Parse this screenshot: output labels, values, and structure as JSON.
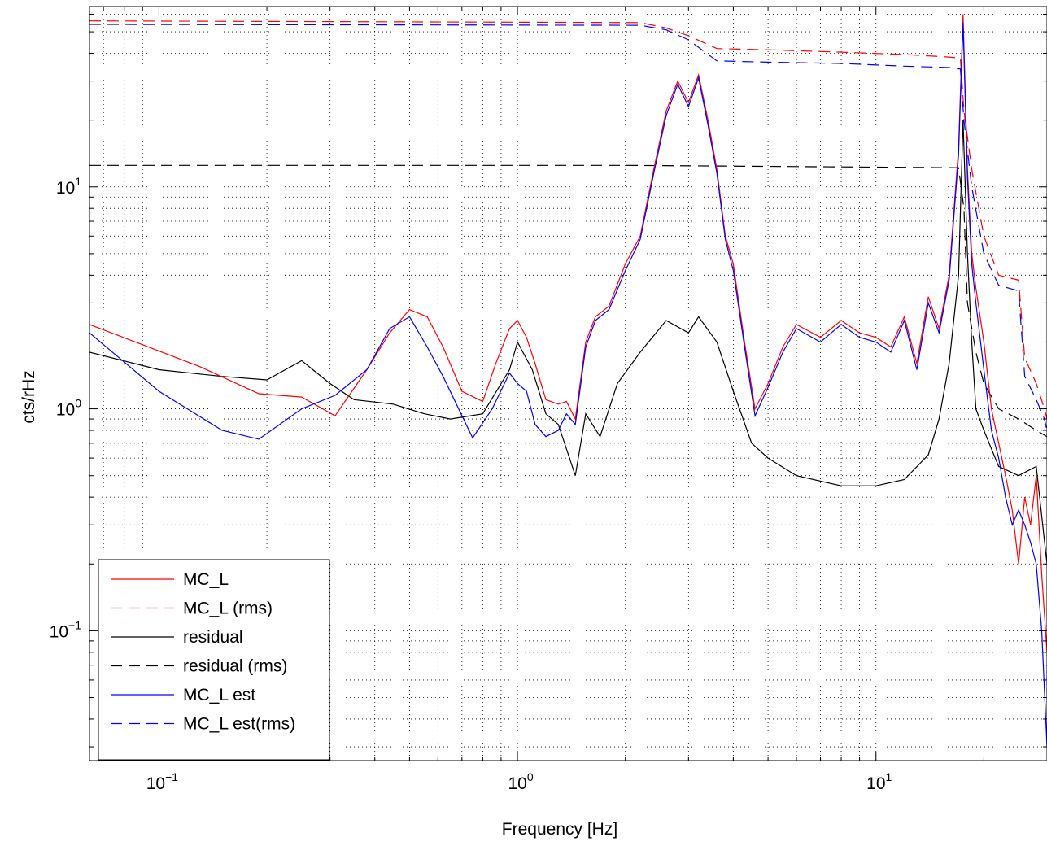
{
  "chart_data": {
    "type": "line",
    "title": "",
    "xlabel": "Frequency [Hz]",
    "ylabel": "cts/rHz",
    "xscale": "log",
    "yscale": "log",
    "xlim": [
      0.064,
      30
    ],
    "ylim": [
      0.026,
      65
    ],
    "grid": true,
    "legend_position": "bottom-left",
    "x_ticks": [
      {
        "value": 0.1,
        "base": "10",
        "exp": "−1"
      },
      {
        "value": 1,
        "base": "10",
        "exp": "0"
      },
      {
        "value": 10,
        "base": "10",
        "exp": "1"
      }
    ],
    "y_ticks": [
      {
        "value": 0.1,
        "base": "10",
        "exp": "−1"
      },
      {
        "value": 1,
        "base": "10",
        "exp": "0"
      },
      {
        "value": 10,
        "base": "10",
        "exp": "1"
      }
    ],
    "series": [
      {
        "name": "MC_L",
        "color": "#ff0000",
        "dash": "solid",
        "points": [
          [
            0.064,
            2.4
          ],
          [
            0.13,
            1.55
          ],
          [
            0.19,
            1.17
          ],
          [
            0.25,
            1.13
          ],
          [
            0.31,
            0.93
          ],
          [
            0.38,
            1.5
          ],
          [
            0.44,
            2.2
          ],
          [
            0.5,
            2.8
          ],
          [
            0.56,
            2.6
          ],
          [
            0.62,
            1.9
          ],
          [
            0.7,
            1.2
          ],
          [
            0.8,
            1.08
          ],
          [
            0.87,
            1.6
          ],
          [
            0.95,
            2.3
          ],
          [
            1.0,
            2.5
          ],
          [
            1.06,
            2.1
          ],
          [
            1.12,
            1.6
          ],
          [
            1.2,
            1.1
          ],
          [
            1.3,
            1.05
          ],
          [
            1.37,
            1.08
          ],
          [
            1.45,
            0.9
          ],
          [
            1.55,
            2.0
          ],
          [
            1.65,
            2.6
          ],
          [
            1.8,
            2.9
          ],
          [
            2.0,
            4.5
          ],
          [
            2.2,
            6.0
          ],
          [
            2.4,
            12.0
          ],
          [
            2.6,
            22.0
          ],
          [
            2.8,
            30.0
          ],
          [
            3.0,
            24.0
          ],
          [
            3.2,
            32.0
          ],
          [
            3.4,
            20.0
          ],
          [
            3.6,
            12.0
          ],
          [
            3.8,
            6.0
          ],
          [
            4.0,
            4.5
          ],
          [
            4.3,
            2.0
          ],
          [
            4.6,
            1.0
          ],
          [
            5.0,
            1.3
          ],
          [
            5.5,
            1.9
          ],
          [
            6.0,
            2.4
          ],
          [
            7.0,
            2.1
          ],
          [
            8.0,
            2.5
          ],
          [
            9.0,
            2.2
          ],
          [
            10.0,
            2.1
          ],
          [
            11.0,
            1.9
          ],
          [
            12.0,
            2.6
          ],
          [
            13.0,
            1.6
          ],
          [
            14.0,
            3.2
          ],
          [
            15.0,
            2.3
          ],
          [
            16.0,
            4.0
          ],
          [
            17.0,
            15.0
          ],
          [
            17.5,
            60.0
          ],
          [
            18.0,
            12.0
          ],
          [
            18.5,
            5.0
          ],
          [
            19.0,
            3.5
          ],
          [
            20.0,
            2.0
          ],
          [
            21.0,
            1.0
          ],
          [
            22.0,
            0.7
          ],
          [
            23.0,
            0.5
          ],
          [
            24.0,
            0.35
          ],
          [
            25.0,
            0.2
          ],
          [
            26.0,
            0.4
          ],
          [
            27.0,
            0.3
          ],
          [
            28.0,
            0.5
          ],
          [
            29.0,
            0.18
          ],
          [
            30.0,
            0.08
          ]
        ]
      },
      {
        "name": "MC_L (rms)",
        "color": "#ff0000",
        "dash": "dashed",
        "points": [
          [
            0.064,
            56.0
          ],
          [
            2.2,
            55.0
          ],
          [
            2.6,
            52.0
          ],
          [
            3.0,
            48.0
          ],
          [
            3.6,
            42.0
          ],
          [
            5.0,
            41.5
          ],
          [
            8.0,
            40.5
          ],
          [
            12.0,
            39.5
          ],
          [
            16.0,
            38.5
          ],
          [
            17.2,
            38.0
          ],
          [
            17.6,
            22.0
          ],
          [
            18.5,
            12.0
          ],
          [
            20.0,
            6.0
          ],
          [
            22.0,
            4.0
          ],
          [
            25.0,
            3.8
          ],
          [
            26.0,
            1.7
          ],
          [
            28.0,
            1.3
          ],
          [
            29.5,
            1.0
          ],
          [
            30.0,
            0.9
          ]
        ]
      },
      {
        "name": "residual",
        "color": "#000000",
        "dash": "solid",
        "points": [
          [
            0.064,
            1.8
          ],
          [
            0.1,
            1.5
          ],
          [
            0.15,
            1.4
          ],
          [
            0.2,
            1.35
          ],
          [
            0.25,
            1.65
          ],
          [
            0.3,
            1.3
          ],
          [
            0.35,
            1.1
          ],
          [
            0.45,
            1.05
          ],
          [
            0.55,
            0.95
          ],
          [
            0.65,
            0.9
          ],
          [
            0.8,
            0.95
          ],
          [
            0.95,
            1.5
          ],
          [
            1.0,
            2.0
          ],
          [
            1.1,
            1.5
          ],
          [
            1.2,
            0.95
          ],
          [
            1.3,
            0.85
          ],
          [
            1.45,
            0.5
          ],
          [
            1.55,
            0.95
          ],
          [
            1.7,
            0.75
          ],
          [
            1.9,
            1.3
          ],
          [
            2.2,
            1.8
          ],
          [
            2.6,
            2.5
          ],
          [
            3.0,
            2.2
          ],
          [
            3.2,
            2.6
          ],
          [
            3.6,
            2.0
          ],
          [
            4.0,
            1.2
          ],
          [
            4.5,
            0.7
          ],
          [
            5.0,
            0.6
          ],
          [
            6.0,
            0.5
          ],
          [
            8.0,
            0.45
          ],
          [
            10.0,
            0.45
          ],
          [
            12.0,
            0.48
          ],
          [
            14.0,
            0.62
          ],
          [
            15.0,
            0.9
          ],
          [
            16.0,
            1.6
          ],
          [
            17.0,
            4.0
          ],
          [
            17.5,
            20.0
          ],
          [
            18.0,
            5.0
          ],
          [
            18.5,
            2.0
          ],
          [
            19.0,
            1.0
          ],
          [
            20.0,
            0.8
          ],
          [
            22.0,
            0.55
          ],
          [
            25.0,
            0.5
          ],
          [
            28.0,
            0.55
          ],
          [
            30.0,
            0.2
          ]
        ]
      },
      {
        "name": "residual (rms)",
        "color": "#000000",
        "dash": "dashed",
        "points": [
          [
            0.064,
            12.5
          ],
          [
            2.0,
            12.5
          ],
          [
            17.0,
            12.2
          ],
          [
            17.6,
            8.0
          ],
          [
            18.0,
            3.0
          ],
          [
            19.0,
            1.8
          ],
          [
            20.0,
            1.3
          ],
          [
            22.0,
            1.0
          ],
          [
            25.0,
            0.9
          ],
          [
            28.0,
            0.8
          ],
          [
            30.0,
            0.75
          ]
        ]
      },
      {
        "name": "MC_L est",
        "color": "#0000ff",
        "dash": "solid",
        "points": [
          [
            0.064,
            2.2
          ],
          [
            0.1,
            1.2
          ],
          [
            0.15,
            0.8
          ],
          [
            0.19,
            0.73
          ],
          [
            0.25,
            1.0
          ],
          [
            0.31,
            1.15
          ],
          [
            0.38,
            1.5
          ],
          [
            0.44,
            2.3
          ],
          [
            0.5,
            2.6
          ],
          [
            0.56,
            1.9
          ],
          [
            0.62,
            1.4
          ],
          [
            0.75,
            0.74
          ],
          [
            0.85,
            1.0
          ],
          [
            0.95,
            1.45
          ],
          [
            1.0,
            1.3
          ],
          [
            1.06,
            1.2
          ],
          [
            1.12,
            0.85
          ],
          [
            1.2,
            0.75
          ],
          [
            1.3,
            0.8
          ],
          [
            1.37,
            0.95
          ],
          [
            1.45,
            0.85
          ],
          [
            1.55,
            1.9
          ],
          [
            1.65,
            2.5
          ],
          [
            1.8,
            2.8
          ],
          [
            2.0,
            4.2
          ],
          [
            2.2,
            5.8
          ],
          [
            2.4,
            11.5
          ],
          [
            2.6,
            21.0
          ],
          [
            2.8,
            29.0
          ],
          [
            3.0,
            23.0
          ],
          [
            3.2,
            31.0
          ],
          [
            3.4,
            19.0
          ],
          [
            3.6,
            11.5
          ],
          [
            3.8,
            5.8
          ],
          [
            4.0,
            4.2
          ],
          [
            4.3,
            1.9
          ],
          [
            4.6,
            0.93
          ],
          [
            5.0,
            1.25
          ],
          [
            5.5,
            1.8
          ],
          [
            6.0,
            2.3
          ],
          [
            7.0,
            2.0
          ],
          [
            8.0,
            2.4
          ],
          [
            9.0,
            2.1
          ],
          [
            10.0,
            2.0
          ],
          [
            11.0,
            1.8
          ],
          [
            12.0,
            2.5
          ],
          [
            13.0,
            1.5
          ],
          [
            14.0,
            3.0
          ],
          [
            15.0,
            2.2
          ],
          [
            16.0,
            3.8
          ],
          [
            17.0,
            14.0
          ],
          [
            17.5,
            55.0
          ],
          [
            18.0,
            11.0
          ],
          [
            18.5,
            4.5
          ],
          [
            19.0,
            3.0
          ],
          [
            20.0,
            1.5
          ],
          [
            21.0,
            0.8
          ],
          [
            22.0,
            0.6
          ],
          [
            23.0,
            0.4
          ],
          [
            24.0,
            0.3
          ],
          [
            25.0,
            0.35
          ],
          [
            26.0,
            0.3
          ],
          [
            27.0,
            0.25
          ],
          [
            28.0,
            0.2
          ],
          [
            29.0,
            0.1
          ],
          [
            30.0,
            0.03
          ]
        ]
      },
      {
        "name": "MC_L est(rms)",
        "color": "#0000ff",
        "dash": "dashed",
        "points": [
          [
            0.064,
            54.0
          ],
          [
            2.2,
            53.5
          ],
          [
            2.6,
            51.0
          ],
          [
            3.0,
            46.0
          ],
          [
            3.6,
            37.0
          ],
          [
            5.0,
            36.5
          ],
          [
            8.0,
            36.0
          ],
          [
            12.0,
            35.0
          ],
          [
            16.0,
            34.5
          ],
          [
            17.2,
            34.0
          ],
          [
            17.6,
            20.0
          ],
          [
            18.5,
            10.0
          ],
          [
            20.0,
            5.0
          ],
          [
            22.0,
            3.6
          ],
          [
            25.0,
            3.4
          ],
          [
            26.0,
            1.4
          ],
          [
            28.0,
            1.1
          ],
          [
            29.5,
            0.9
          ],
          [
            30.0,
            0.8
          ]
        ]
      }
    ]
  }
}
